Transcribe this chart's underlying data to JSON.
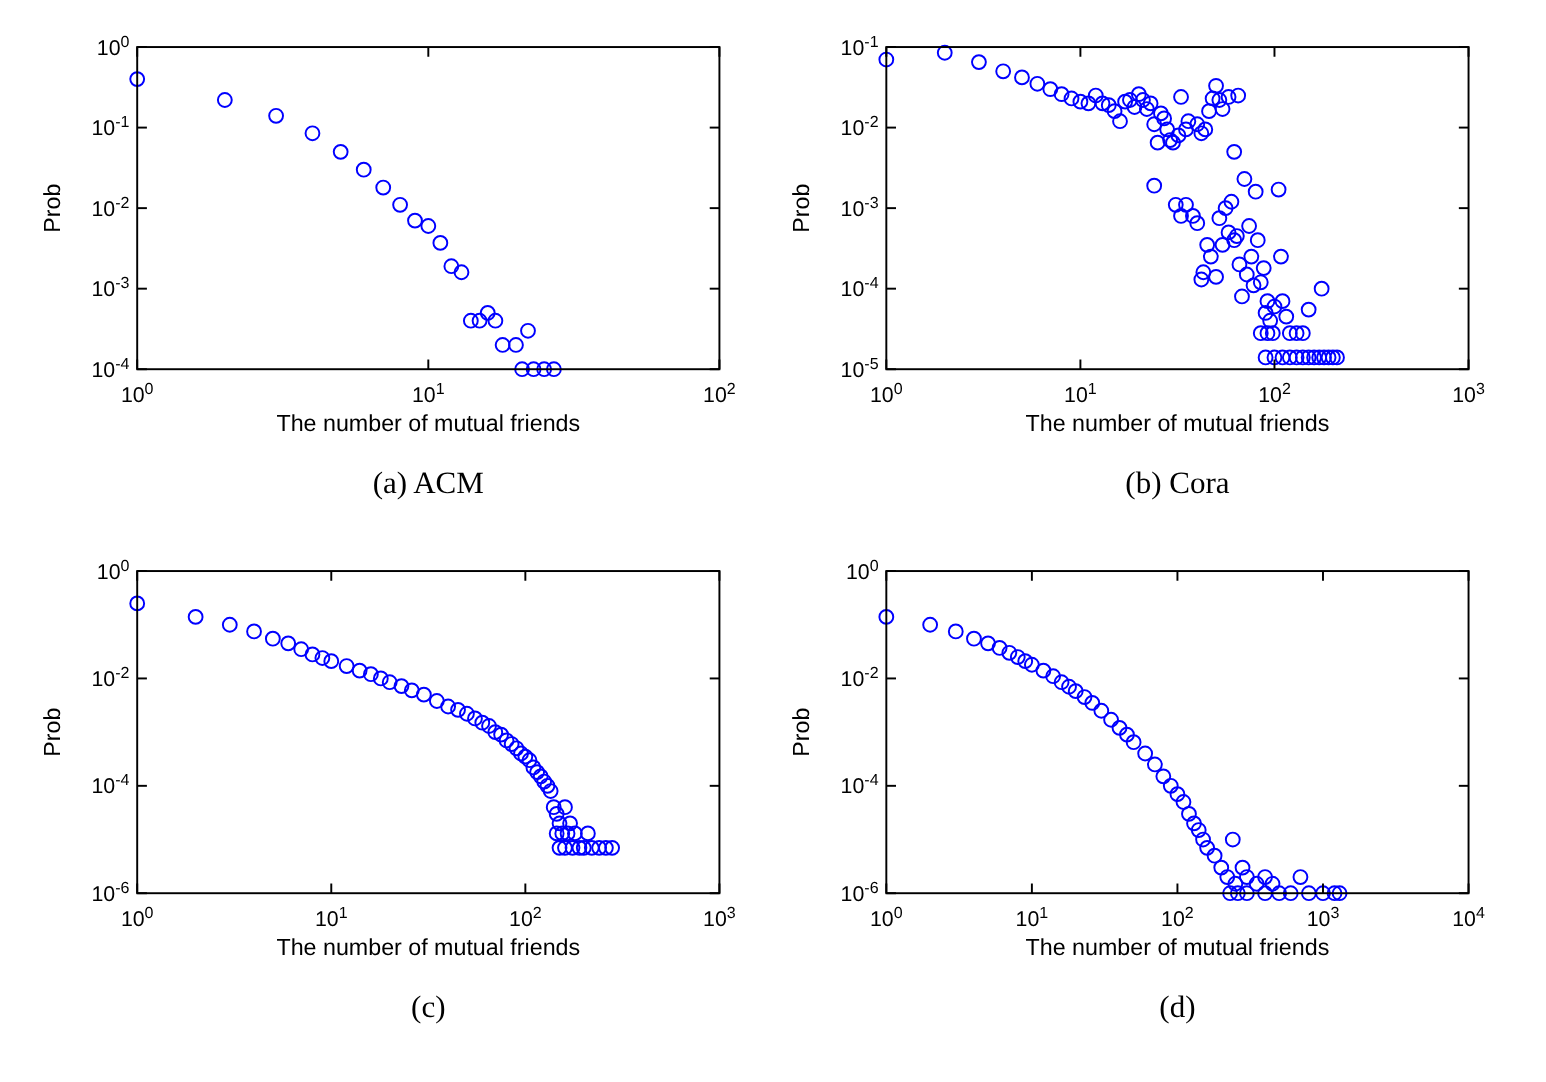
{
  "chart_data": [
    {
      "type": "scatter",
      "title": "(a)  ACM",
      "xlabel": "The number of mutual friends",
      "ylabel": "Prob",
      "log": "xy",
      "marker": "circle",
      "xlim": [
        1,
        100
      ],
      "ylim": [
        0.0001,
        1
      ],
      "xticks": [
        {
          "value": 1,
          "label": "10$^{0}$"
        },
        {
          "value": 10,
          "label": "10$^{1}$"
        },
        {
          "value": 100,
          "label": "10$^{2}$"
        }
      ],
      "yticks": [
        {
          "value": 0.0001,
          "label": "10$^{-4}$"
        },
        {
          "value": 0.001,
          "label": "10$^{-3}$"
        },
        {
          "value": 0.01,
          "label": "10$^{-2}$"
        },
        {
          "value": 0.1,
          "label": "10$^{-1}$"
        },
        {
          "value": 1,
          "label": "10$^{0}$"
        }
      ],
      "series": [
        {
          "color": "#0000ff",
          "x": [
            1,
            2,
            3,
            4,
            5,
            6,
            7,
            8,
            9,
            10,
            11,
            12,
            13,
            14,
            15,
            16,
            17,
            18,
            20,
            21,
            22,
            23,
            25,
            27
          ],
          "values": [
            0.4,
            0.22,
            0.14,
            0.085,
            0.05,
            0.03,
            0.018,
            0.011,
            0.007,
            0.006,
            0.0037,
            0.0019,
            0.0016,
            0.0004,
            0.0004,
            0.0005,
            0.0004,
            0.0002,
            0.0002,
            0.0001,
            0.0003,
            0.0001,
            0.0001,
            0.0001
          ]
        }
      ]
    },
    {
      "type": "scatter",
      "title": "(b)  Cora",
      "xlabel": "The number of mutual friends",
      "ylabel": "Prob",
      "log": "xy",
      "marker": "circle",
      "xlim": [
        1,
        1000
      ],
      "ylim": [
        1e-05,
        0.1
      ],
      "xticks": [
        {
          "value": 1,
          "label": "10$^{0}$"
        },
        {
          "value": 10,
          "label": "10$^{1}$"
        },
        {
          "value": 100,
          "label": "10$^{2}$"
        },
        {
          "value": 1000,
          "label": "10$^{3}$"
        }
      ],
      "yticks": [
        {
          "value": 1e-05,
          "label": "10$^{-5}$"
        },
        {
          "value": 0.0001,
          "label": "10$^{-4}$"
        },
        {
          "value": 0.001,
          "label": "10$^{-3}$"
        },
        {
          "value": 0.01,
          "label": "10$^{-2}$"
        },
        {
          "value": 0.1,
          "label": "10$^{-1}$"
        }
      ],
      "series": [
        {
          "color": "#0000ff",
          "x": [
            1,
            2,
            3,
            4,
            5,
            6,
            7,
            8,
            9,
            10,
            11,
            12,
            13,
            14,
            15,
            16,
            17,
            18,
            19,
            20,
            21,
            22,
            23,
            24,
            25,
            26,
            27,
            28,
            29,
            30,
            32,
            33,
            35,
            36,
            40,
            42,
            44,
            46,
            48,
            50,
            52,
            54,
            58,
            62,
            65,
            24,
            31,
            33,
            35,
            38,
            40,
            42,
            43,
            45,
            47,
            50,
            52,
            54,
            56,
            58,
            60,
            62,
            64,
            66,
            68,
            70,
            72,
            74,
            76,
            78,
            80,
            82,
            85,
            88,
            90,
            92,
            95,
            98,
            100,
            105,
            108,
            110,
            115,
            120,
            130,
            140,
            150,
            175,
            85,
            92,
            90,
            100,
            110,
            120,
            130,
            140,
            150,
            160,
            170,
            180,
            190,
            200,
            210
          ],
          "values": [
            0.07,
            0.085,
            0.065,
            0.05,
            0.042,
            0.035,
            0.03,
            0.026,
            0.023,
            0.021,
            0.02,
            0.025,
            0.02,
            0.019,
            0.016,
            0.012,
            0.021,
            0.022,
            0.018,
            0.026,
            0.022,
            0.017,
            0.02,
            0.011,
            0.0065,
            0.015,
            0.013,
            0.0095,
            0.007,
            0.0065,
            0.008,
            0.024,
            0.0095,
            0.012,
            0.011,
            0.0085,
            0.0095,
            0.016,
            0.023,
            0.033,
            0.022,
            0.017,
            0.024,
            0.005,
            0.025,
            0.0019,
            0.0011,
            0.0008,
            0.0011,
            0.0008,
            0.00065,
            0.00013,
            0.00016,
            0.00035,
            0.00025,
            0.00014,
            0.00075,
            0.00035,
            0.001,
            0.0005,
            0.0012,
            0.0004,
            0.00045,
            0.0002,
            8e-05,
            0.0023,
            0.00015,
            0.0006,
            0.00025,
            0.00011,
            0.0016,
            0.0004,
            0.00012,
            0.00018,
            5e-05,
            7e-05,
            4e-05,
            2.8e-05,
            6e-05,
            0.0017,
            0.00025,
            7e-05,
            4.5e-05,
            2.8e-05,
            2.8e-05,
            2.8e-05,
            5.5e-05,
            0.0001,
            2.8e-05,
            2.8e-05,
            1.4e-05,
            1.4e-05,
            1.4e-05,
            1.4e-05,
            1.4e-05,
            1.4e-05,
            1.4e-05,
            1.4e-05,
            1.4e-05,
            1.4e-05,
            1.4e-05,
            1.4e-05,
            1.4e-05
          ]
        }
      ]
    },
    {
      "type": "scatter",
      "title": "(c)",
      "xlabel": "The number of mutual friends",
      "ylabel": "Prob",
      "log": "xy",
      "marker": "circle",
      "xlim": [
        1,
        1000
      ],
      "ylim": [
        1e-06,
        1
      ],
      "xticks": [
        {
          "value": 1,
          "label": "10$^{0}$"
        },
        {
          "value": 10,
          "label": "10$^{1}$"
        },
        {
          "value": 100,
          "label": "10$^{2}$"
        },
        {
          "value": 1000,
          "label": "10$^{3}$"
        }
      ],
      "yticks": [
        {
          "value": 1e-06,
          "label": "10$^{-6}$"
        },
        {
          "value": 0.0001,
          "label": "10$^{-4}$"
        },
        {
          "value": 0.01,
          "label": "10$^{-2}$"
        },
        {
          "value": 1,
          "label": "10$^{0}$"
        }
      ],
      "series": [
        {
          "color": "#0000ff",
          "x": [
            1,
            2,
            3,
            4,
            5,
            6,
            7,
            8,
            9,
            10,
            12,
            14,
            16,
            18,
            20,
            23,
            26,
            30,
            35,
            40,
            45,
            50,
            55,
            60,
            65,
            70,
            75,
            80,
            85,
            90,
            95,
            100,
            105,
            110,
            115,
            120,
            125,
            130,
            135,
            140,
            145,
            150,
            155,
            160,
            165,
            170,
            175,
            180,
            190,
            200,
            210,
            220,
            240,
            260,
            280,
            150,
            160,
            145
          ],
          "values": [
            0.25,
            0.14,
            0.1,
            0.075,
            0.055,
            0.045,
            0.035,
            0.028,
            0.024,
            0.021,
            0.017,
            0.014,
            0.012,
            0.01,
            0.0085,
            0.0072,
            0.006,
            0.005,
            0.0038,
            0.003,
            0.0026,
            0.0022,
            0.0018,
            0.0015,
            0.0013,
            0.001,
            0.0009,
            0.0007,
            0.0006,
            0.0005,
            0.0004,
            0.00035,
            0.0003,
            0.00022,
            0.00018,
            0.00015,
            0.00012,
            0.0001,
            8e-05,
            4e-05,
            3e-05,
            2e-05,
            1.3e-05,
            4e-05,
            1.3e-05,
            2e-05,
            7e-06,
            1.3e-05,
            7e-06,
            7e-06,
            1.3e-05,
            7e-06,
            7e-06,
            7e-06,
            7e-06,
            7e-06,
            7e-06,
            1.3e-05
          ]
        }
      ]
    },
    {
      "type": "scatter",
      "title": "(d)",
      "xlabel": "The number of mutual friends",
      "ylabel": "Prob",
      "log": "xy",
      "marker": "circle",
      "xlim": [
        1,
        10000
      ],
      "ylim": [
        1e-06,
        1
      ],
      "xticks": [
        {
          "value": 1,
          "label": "10$^{0}$"
        },
        {
          "value": 10,
          "label": "10$^{1}$"
        },
        {
          "value": 100,
          "label": "10$^{2}$"
        },
        {
          "value": 1000,
          "label": "10$^{3}$"
        },
        {
          "value": 10000,
          "label": "10$^{4}$"
        }
      ],
      "yticks": [
        {
          "value": 1e-06,
          "label": "10$^{-6}$"
        },
        {
          "value": 0.0001,
          "label": "10$^{-4}$"
        },
        {
          "value": 0.01,
          "label": "10$^{-2}$"
        },
        {
          "value": 1,
          "label": "10$^{0}$"
        }
      ],
      "series": [
        {
          "color": "#0000ff",
          "x": [
            1,
            2,
            3,
            4,
            5,
            6,
            7,
            8,
            9,
            10,
            12,
            14,
            16,
            18,
            20,
            23,
            26,
            30,
            35,
            40,
            45,
            50,
            60,
            70,
            80,
            90,
            100,
            110,
            120,
            130,
            140,
            150,
            160,
            180,
            200,
            220,
            250,
            280,
            300,
            350,
            400,
            450,
            700,
            240,
            230,
            260,
            300,
            400,
            500,
            600,
            800,
            1000,
            1200,
            1300
          ],
          "values": [
            0.14,
            0.1,
            0.075,
            0.055,
            0.045,
            0.037,
            0.03,
            0.025,
            0.021,
            0.018,
            0.014,
            0.011,
            0.0085,
            0.007,
            0.0058,
            0.0045,
            0.0035,
            0.0025,
            0.0017,
            0.0012,
            0.0009,
            0.00065,
            0.0004,
            0.00025,
            0.00015,
            0.0001,
            7e-05,
            5e-05,
            3e-05,
            2e-05,
            1.5e-05,
            1e-05,
            7e-06,
            5e-06,
            3e-06,
            2e-06,
            1.5e-06,
            3e-06,
            2e-06,
            1.5e-06,
            2e-06,
            1.5e-06,
            2e-06,
            1e-05,
            1e-06,
            1e-06,
            1e-06,
            1e-06,
            1e-06,
            1e-06,
            1e-06,
            1e-06,
            1e-06,
            1e-06
          ]
        }
      ]
    }
  ]
}
